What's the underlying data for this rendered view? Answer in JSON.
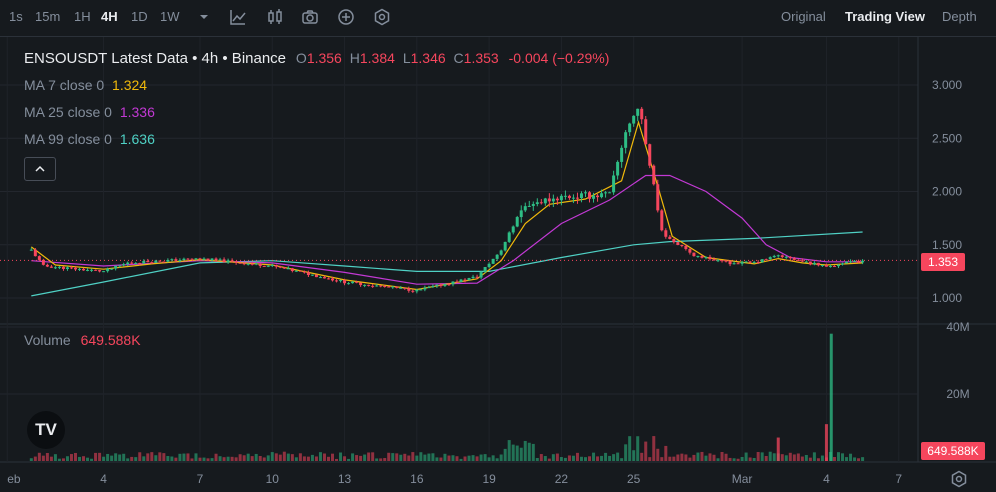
{
  "toolbar": {
    "intervals": [
      "1s",
      "15m",
      "1H",
      "4H",
      "1D",
      "1W"
    ],
    "active_interval": "4H",
    "icons": [
      "chevron-down-icon",
      "indicators-icon",
      "chart-settings-icon",
      "camera-icon",
      "add-icon",
      "gear-icon"
    ],
    "views": [
      "Original",
      "Trading View",
      "Depth"
    ],
    "active_view": "Trading View"
  },
  "legend": {
    "title": "ENSOUSDT Latest Data • 4h • Binance",
    "o_label": "O",
    "o": "1.356",
    "h_label": "H",
    "h": "1.384",
    "l_label": "L",
    "l": "1.346",
    "c_label": "C",
    "c": "1.353",
    "change": "-0.004 (−0.29%)",
    "ma7_label": "MA 7 close 0",
    "ma7": "1.324",
    "ma25_label": "MA 25 close 0",
    "ma25": "1.336",
    "ma99_label": "MA 99 close 0",
    "ma99": "1.636",
    "volume_label": "Volume",
    "volume": "649.588K"
  },
  "price_axis": [
    "3.000",
    "2.500",
    "2.000",
    "1.500",
    "1.000"
  ],
  "last_price": "1.353",
  "volume_axis": [
    "40M",
    "20M"
  ],
  "last_volume": "649.588K",
  "colors": {
    "up": "#2ebd85",
    "down": "#f6465d",
    "ma7": "#f0b90b",
    "ma25": "#c239d4",
    "ma99": "#4fd1c5",
    "bg": "#161a1e"
  },
  "chart_data": {
    "type": "candlestick",
    "title": "ENSOUSDT Latest Data • 4h • Binance",
    "x_ticks": [
      "eb",
      "4",
      "7",
      "10",
      "13",
      "16",
      "19",
      "22",
      "25",
      "Mar",
      "4",
      "7"
    ],
    "ylim": [
      0.85,
      3.35
    ],
    "volume_ylim": [
      0,
      44
    ],
    "anchors": [
      {
        "x": 0,
        "y": 1.45
      },
      {
        "x": 0.5,
        "y": 1.3
      },
      {
        "x": 3,
        "y": 1.25
      },
      {
        "x": 4,
        "y": 1.33
      },
      {
        "x": 7,
        "y": 1.37
      },
      {
        "x": 10,
        "y": 1.3
      },
      {
        "x": 13,
        "y": 1.15
      },
      {
        "x": 16,
        "y": 1.07
      },
      {
        "x": 18.5,
        "y": 1.2
      },
      {
        "x": 19.5,
        "y": 1.45
      },
      {
        "x": 20.2,
        "y": 1.8
      },
      {
        "x": 21,
        "y": 1.9
      },
      {
        "x": 22,
        "y": 1.95
      },
      {
        "x": 24,
        "y": 1.97
      },
      {
        "x": 24.7,
        "y": 2.6
      },
      {
        "x": 25.2,
        "y": 2.8
      },
      {
        "x": 25.8,
        "y": 2.1
      },
      {
        "x": 26.2,
        "y": 1.6
      },
      {
        "x": 27.5,
        "y": 1.4
      },
      {
        "x": 29,
        "y": 1.33
      },
      {
        "x": 30,
        "y": 1.33
      },
      {
        "x": 31,
        "y": 1.4
      },
      {
        "x": 32,
        "y": 1.34
      },
      {
        "x": 33,
        "y": 1.3
      },
      {
        "x": 34.5,
        "y": 1.35
      }
    ],
    "ma7": [
      [
        0,
        1.48
      ],
      [
        1,
        1.31
      ],
      [
        3,
        1.27
      ],
      [
        5,
        1.32
      ],
      [
        7,
        1.36
      ],
      [
        10,
        1.31
      ],
      [
        13,
        1.17
      ],
      [
        16,
        1.08
      ],
      [
        18.5,
        1.18
      ],
      [
        19.5,
        1.35
      ],
      [
        20.5,
        1.7
      ],
      [
        21.5,
        1.88
      ],
      [
        23,
        1.93
      ],
      [
        24.5,
        2.1
      ],
      [
        25.2,
        2.65
      ],
      [
        26,
        2.05
      ],
      [
        26.6,
        1.58
      ],
      [
        28,
        1.38
      ],
      [
        30,
        1.32
      ],
      [
        31,
        1.37
      ],
      [
        32,
        1.33
      ],
      [
        33,
        1.31
      ],
      [
        34.5,
        1.33
      ]
    ],
    "ma25": [
      [
        0,
        1.35
      ],
      [
        3,
        1.3
      ],
      [
        7,
        1.35
      ],
      [
        10,
        1.33
      ],
      [
        13,
        1.24
      ],
      [
        16,
        1.13
      ],
      [
        18.5,
        1.14
      ],
      [
        20,
        1.35
      ],
      [
        22,
        1.7
      ],
      [
        24,
        1.92
      ],
      [
        25.5,
        2.15
      ],
      [
        26.5,
        2.15
      ],
      [
        28,
        2.0
      ],
      [
        29.5,
        1.75
      ],
      [
        30.5,
        1.5
      ],
      [
        31.5,
        1.38
      ],
      [
        33,
        1.34
      ],
      [
        34.5,
        1.34
      ]
    ],
    "ma99": [
      [
        0,
        1.02
      ],
      [
        3,
        1.15
      ],
      [
        7,
        1.33
      ],
      [
        10,
        1.35
      ],
      [
        13,
        1.3
      ],
      [
        16,
        1.25
      ],
      [
        19,
        1.25
      ],
      [
        22,
        1.38
      ],
      [
        25,
        1.5
      ],
      [
        26.5,
        1.53
      ],
      [
        30,
        1.56
      ],
      [
        34.5,
        1.62
      ]
    ],
    "volume_spikes": [
      {
        "x": 33.2,
        "value": 38
      },
      {
        "x": 33.0,
        "value": 11
      },
      {
        "x": 31.0,
        "value": 7
      }
    ]
  }
}
